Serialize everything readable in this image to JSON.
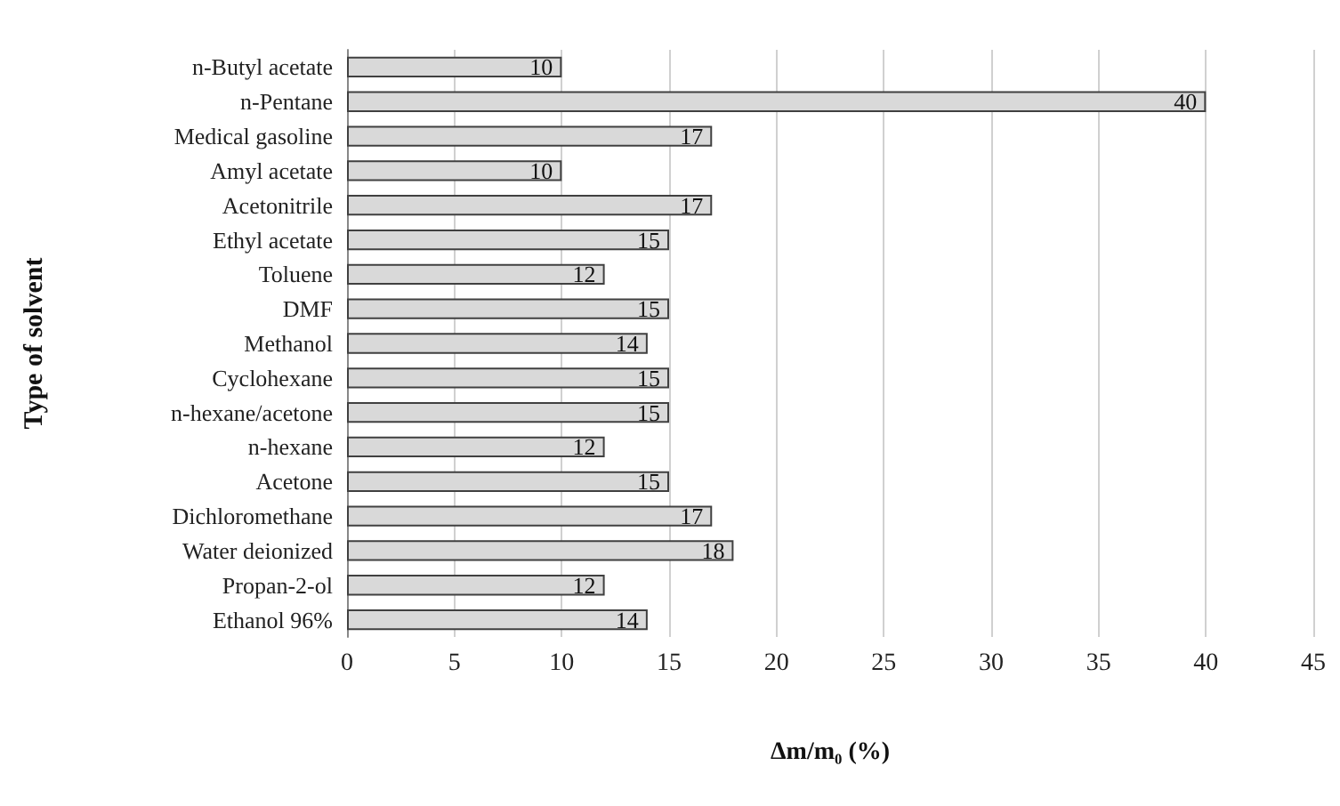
{
  "chart_data": {
    "type": "bar",
    "orientation": "horizontal",
    "xlabel": "Δm/m₀ (%)",
    "ylabel": "Type of solvent",
    "categories": [
      "n-Butyl acetate",
      "n-Pentane",
      "Medical gasoline",
      "Amyl acetate",
      "Acetonitrile",
      "Ethyl acetate",
      "Toluene",
      "DMF",
      "Methanol",
      "Cyclohexane",
      "n-hexane/acetone",
      "n-hexane",
      "Acetone",
      "Dichloromethane",
      "Water deionized",
      "Propan-2-ol",
      "Ethanol 96%"
    ],
    "values": [
      10,
      40,
      17,
      10,
      17,
      15,
      12,
      15,
      14,
      15,
      15,
      12,
      15,
      17,
      18,
      12,
      14
    ],
    "color": "#d9d9d9",
    "xlim": [
      0,
      45
    ],
    "xticks": [
      0,
      5,
      10,
      15,
      20,
      25,
      30,
      35,
      40,
      45
    ],
    "grid": "x",
    "data_labels": true
  }
}
